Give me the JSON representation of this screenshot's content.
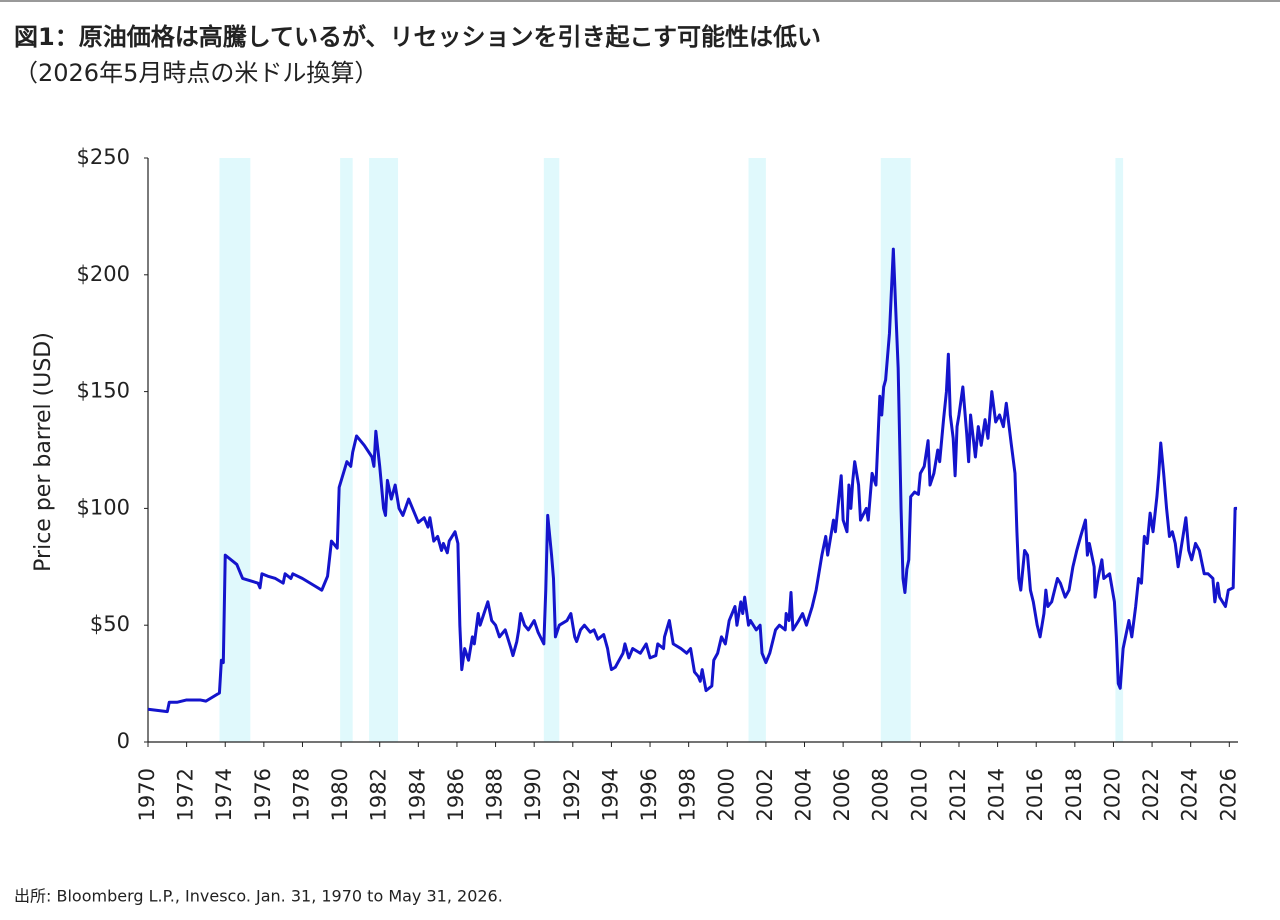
{
  "chart_data": {
    "type": "line",
    "title": "図1：原油価格は高騰しているが、リセッションを引き起こす可能性は低い",
    "subtitle": "（2026年5月時点の米ドル換算）",
    "y_label": "Price per barrel (USD)",
    "source": "出所: Bloomberg L.P., Invesco. Jan. 31, 1970 to May 31, 2026.",
    "xlim": [
      1970,
      2026.45
    ],
    "xticks": [
      1970,
      1972,
      1974,
      1976,
      1978,
      1980,
      1982,
      1984,
      1986,
      1988,
      1990,
      1992,
      1994,
      1996,
      1998,
      2000,
      2002,
      2004,
      2006,
      2008,
      2010,
      2012,
      2014,
      2016,
      2018,
      2020,
      2022,
      2024,
      2026
    ],
    "ylim": [
      0,
      250
    ],
    "yticks": [
      0,
      {
        "value": 50,
        "label": "$50"
      },
      {
        "value": 100,
        "label": "$100"
      },
      {
        "value": 150,
        "label": "$150"
      },
      {
        "value": 200,
        "label": "$200"
      },
      {
        "value": 250,
        "label": "$250"
      }
    ],
    "recession_color": "#e0f9fc",
    "recessions": [
      {
        "start": 1973.7,
        "end": 1975.3
      },
      {
        "start": 1979.95,
        "end": 1980.6
      },
      {
        "start": 1981.45,
        "end": 1982.95
      },
      {
        "start": 1990.5,
        "end": 1991.3
      },
      {
        "start": 2001.1,
        "end": 2002.0
      },
      {
        "start": 2007.95,
        "end": 2009.5
      },
      {
        "start": 2020.1,
        "end": 2020.5
      }
    ],
    "x": [
      1970.0,
      1971.0,
      1971.1,
      1971.5,
      1972.0,
      1972.7,
      1973.0,
      1973.3,
      1973.7,
      1973.8,
      1973.9,
      1974.0,
      1974.6,
      1974.8,
      1974.9,
      1975.7,
      1975.8,
      1975.9,
      1976.2,
      1976.6,
      1977.0,
      1977.1,
      1977.4,
      1977.5,
      1978.0,
      1978.6,
      1979.0,
      1979.1,
      1979.3,
      1979.5,
      1979.8,
      1979.9,
      1980.3,
      1980.5,
      1980.6,
      1980.8,
      1981.2,
      1981.6,
      1981.7,
      1981.8,
      1982.0,
      1982.2,
      1982.3,
      1982.4,
      1982.6,
      1982.8,
      1983.0,
      1983.2,
      1983.5,
      1983.8,
      1984.0,
      1984.3,
      1984.5,
      1984.6,
      1984.8,
      1985.0,
      1985.2,
      1985.3,
      1985.5,
      1985.6,
      1985.9,
      1986.05,
      1986.15,
      1986.25,
      1986.4,
      1986.6,
      1986.8,
      1986.9,
      1987.1,
      1987.2,
      1987.4,
      1987.6,
      1987.8,
      1988.0,
      1988.2,
      1988.5,
      1988.8,
      1988.9,
      1989.1,
      1989.2,
      1989.3,
      1989.5,
      1989.7,
      1990.0,
      1990.2,
      1990.5,
      1990.6,
      1990.7,
      1990.9,
      1991.0,
      1991.1,
      1991.3,
      1991.7,
      1991.9,
      1992.1,
      1992.2,
      1992.4,
      1992.6,
      1992.9,
      1993.1,
      1993.3,
      1993.6,
      1993.8,
      1993.9,
      1994.0,
      1994.2,
      1994.6,
      1994.7,
      1994.9,
      1995.1,
      1995.5,
      1995.8,
      1996.0,
      1996.3,
      1996.4,
      1996.7,
      1996.75,
      1997.0,
      1997.2,
      1997.6,
      1997.9,
      1998.1,
      1998.3,
      1998.5,
      1998.6,
      1998.7,
      1998.9,
      1999.2,
      1999.3,
      1999.5,
      1999.7,
      1999.9,
      2000.1,
      2000.4,
      2000.5,
      2000.7,
      2000.8,
      2000.9,
      2001.1,
      2001.2,
      2001.5,
      2001.7,
      2001.8,
      2002.0,
      2002.2,
      2002.5,
      2002.7,
      2003.0,
      2003.05,
      2003.2,
      2003.3,
      2003.4,
      2003.7,
      2003.9,
      2004.1,
      2004.4,
      2004.6,
      2004.7,
      2004.9,
      2005.1,
      2005.2,
      2005.3,
      2005.5,
      2005.6,
      2005.9,
      2006.0,
      2006.2,
      2006.3,
      2006.4,
      2006.5,
      2006.6,
      2006.8,
      2006.9,
      2007.2,
      2007.3,
      2007.5,
      2007.7,
      2007.9,
      2008.0,
      2008.1,
      2008.2,
      2008.4,
      2008.6,
      2008.75,
      2008.85,
      2009.0,
      2009.1,
      2009.2,
      2009.3,
      2009.4,
      2009.5,
      2009.7,
      2009.9,
      2010.0,
      2010.2,
      2010.4,
      2010.5,
      2010.7,
      2010.9,
      2011.0,
      2011.2,
      2011.35,
      2011.45,
      2011.55,
      2011.7,
      2011.8,
      2011.9,
      2012.0,
      2012.2,
      2012.4,
      2012.5,
      2012.6,
      2012.85,
      2013.0,
      2013.15,
      2013.35,
      2013.5,
      2013.7,
      2013.9,
      2014.1,
      2014.3,
      2014.45,
      2014.7,
      2014.9,
      2015.0,
      2015.1,
      2015.2,
      2015.4,
      2015.55,
      2015.7,
      2015.85,
      2016.05,
      2016.2,
      2016.4,
      2016.5,
      2016.6,
      2016.8,
      2017.1,
      2017.25,
      2017.5,
      2017.7,
      2017.9,
      2018.1,
      2018.3,
      2018.55,
      2018.65,
      2018.75,
      2019.0,
      2019.05,
      2019.2,
      2019.4,
      2019.5,
      2019.8,
      2020.05,
      2020.15,
      2020.25,
      2020.35,
      2020.5,
      2020.7,
      2020.8,
      2020.95,
      2021.15,
      2021.3,
      2021.45,
      2021.6,
      2021.75,
      2021.9,
      2022.05,
      2022.25,
      2022.35,
      2022.45,
      2022.6,
      2022.75,
      2022.9,
      2023.05,
      2023.2,
      2023.35,
      2023.6,
      2023.75,
      2023.9,
      2024.05,
      2024.25,
      2024.45,
      2024.7,
      2024.9,
      2025.15,
      2025.25,
      2025.4,
      2025.5,
      2025.8,
      2025.95,
      2026.2,
      2026.3,
      2026.4
    ],
    "series": [
      {
        "color": "#1414cc",
        "values": [
          14,
          13,
          17,
          17,
          18,
          18,
          17.5,
          19,
          21,
          35,
          34,
          80,
          76,
          72,
          70,
          68,
          66,
          72,
          71,
          70,
          68,
          72,
          70,
          72,
          70,
          67,
          65,
          67,
          71,
          86,
          83,
          109,
          120,
          118,
          124,
          131,
          127,
          122,
          118,
          133,
          118,
          100,
          97,
          112,
          104,
          110,
          100,
          97,
          104,
          98,
          94,
          96,
          92,
          96,
          86,
          88,
          82,
          85,
          81,
          86,
          90,
          85,
          50,
          31,
          40,
          35,
          45,
          42,
          55,
          50,
          55,
          60,
          52,
          50,
          45,
          48,
          40,
          37,
          43,
          48,
          55,
          50,
          48,
          52,
          47,
          42,
          65,
          97,
          80,
          70,
          45,
          50,
          52,
          55,
          45,
          43,
          48,
          50,
          47,
          48,
          44,
          46,
          40,
          35,
          31,
          32,
          38,
          42,
          36,
          40,
          38,
          42,
          36,
          37,
          42,
          40,
          45,
          52,
          42,
          40,
          38,
          40,
          30,
          28,
          26,
          31,
          22,
          24,
          35,
          38,
          45,
          42,
          52,
          58,
          50,
          60,
          55,
          62,
          50,
          52,
          48,
          50,
          38,
          34,
          38,
          48,
          50,
          48,
          55,
          52,
          64,
          48,
          52,
          55,
          50,
          58,
          65,
          70,
          80,
          88,
          80,
          85,
          95,
          90,
          114,
          95,
          90,
          110,
          100,
          112,
          120,
          110,
          95,
          100,
          95,
          115,
          110,
          148,
          140,
          152,
          155,
          175,
          211,
          180,
          160,
          100,
          70,
          64,
          74,
          78,
          105,
          107,
          106,
          115,
          118,
          129,
          110,
          115,
          125,
          120,
          138,
          150,
          166,
          140,
          130,
          114,
          135,
          140,
          152,
          132,
          120,
          140,
          122,
          135,
          127,
          138,
          130,
          150,
          137,
          140,
          135,
          145,
          128,
          115,
          90,
          70,
          65,
          82,
          80,
          65,
          60,
          50,
          45,
          55,
          65,
          58,
          60,
          70,
          68,
          62,
          65,
          75,
          82,
          88,
          95,
          80,
          85,
          75,
          62,
          70,
          78,
          70,
          72,
          60,
          45,
          25,
          23,
          40,
          48,
          52,
          45,
          58,
          70,
          68,
          88,
          85,
          98,
          90,
          105,
          115,
          128,
          115,
          100,
          88,
          90,
          85,
          75,
          88,
          96,
          82,
          78,
          85,
          82,
          72,
          72,
          70,
          60,
          68,
          62,
          58,
          65,
          66,
          100,
          100
        ]
      }
    ]
  }
}
